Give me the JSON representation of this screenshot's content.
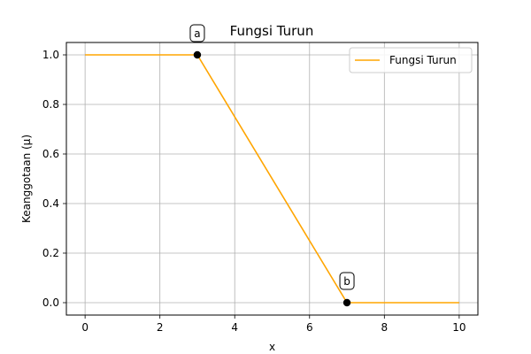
{
  "chart_data": {
    "type": "line",
    "title": "Fungsi Turun",
    "xlabel": "x",
    "ylabel": "Keanggotaan (μ)",
    "xlim": [
      -0.5,
      10.5
    ],
    "ylim": [
      -0.05,
      1.05
    ],
    "xticks": [
      0,
      2,
      4,
      6,
      8,
      10
    ],
    "yticks": [
      0.0,
      0.2,
      0.4,
      0.6,
      0.8,
      1.0
    ],
    "xtick_labels": [
      "0",
      "2",
      "4",
      "6",
      "8",
      "10"
    ],
    "ytick_labels": [
      "0.0",
      "0.2",
      "0.4",
      "0.6",
      "0.8",
      "1.0"
    ],
    "grid": true,
    "legend_position": "top-right",
    "series": [
      {
        "name": "Fungsi Turun",
        "color": "#ffa500",
        "x": [
          0,
          3,
          7,
          10
        ],
        "y": [
          1,
          1,
          0,
          0
        ]
      }
    ],
    "points": [
      {
        "label": "a",
        "x": 3,
        "y": 1,
        "color": "#000000"
      },
      {
        "label": "b",
        "x": 7,
        "y": 0,
        "color": "#000000"
      }
    ]
  }
}
